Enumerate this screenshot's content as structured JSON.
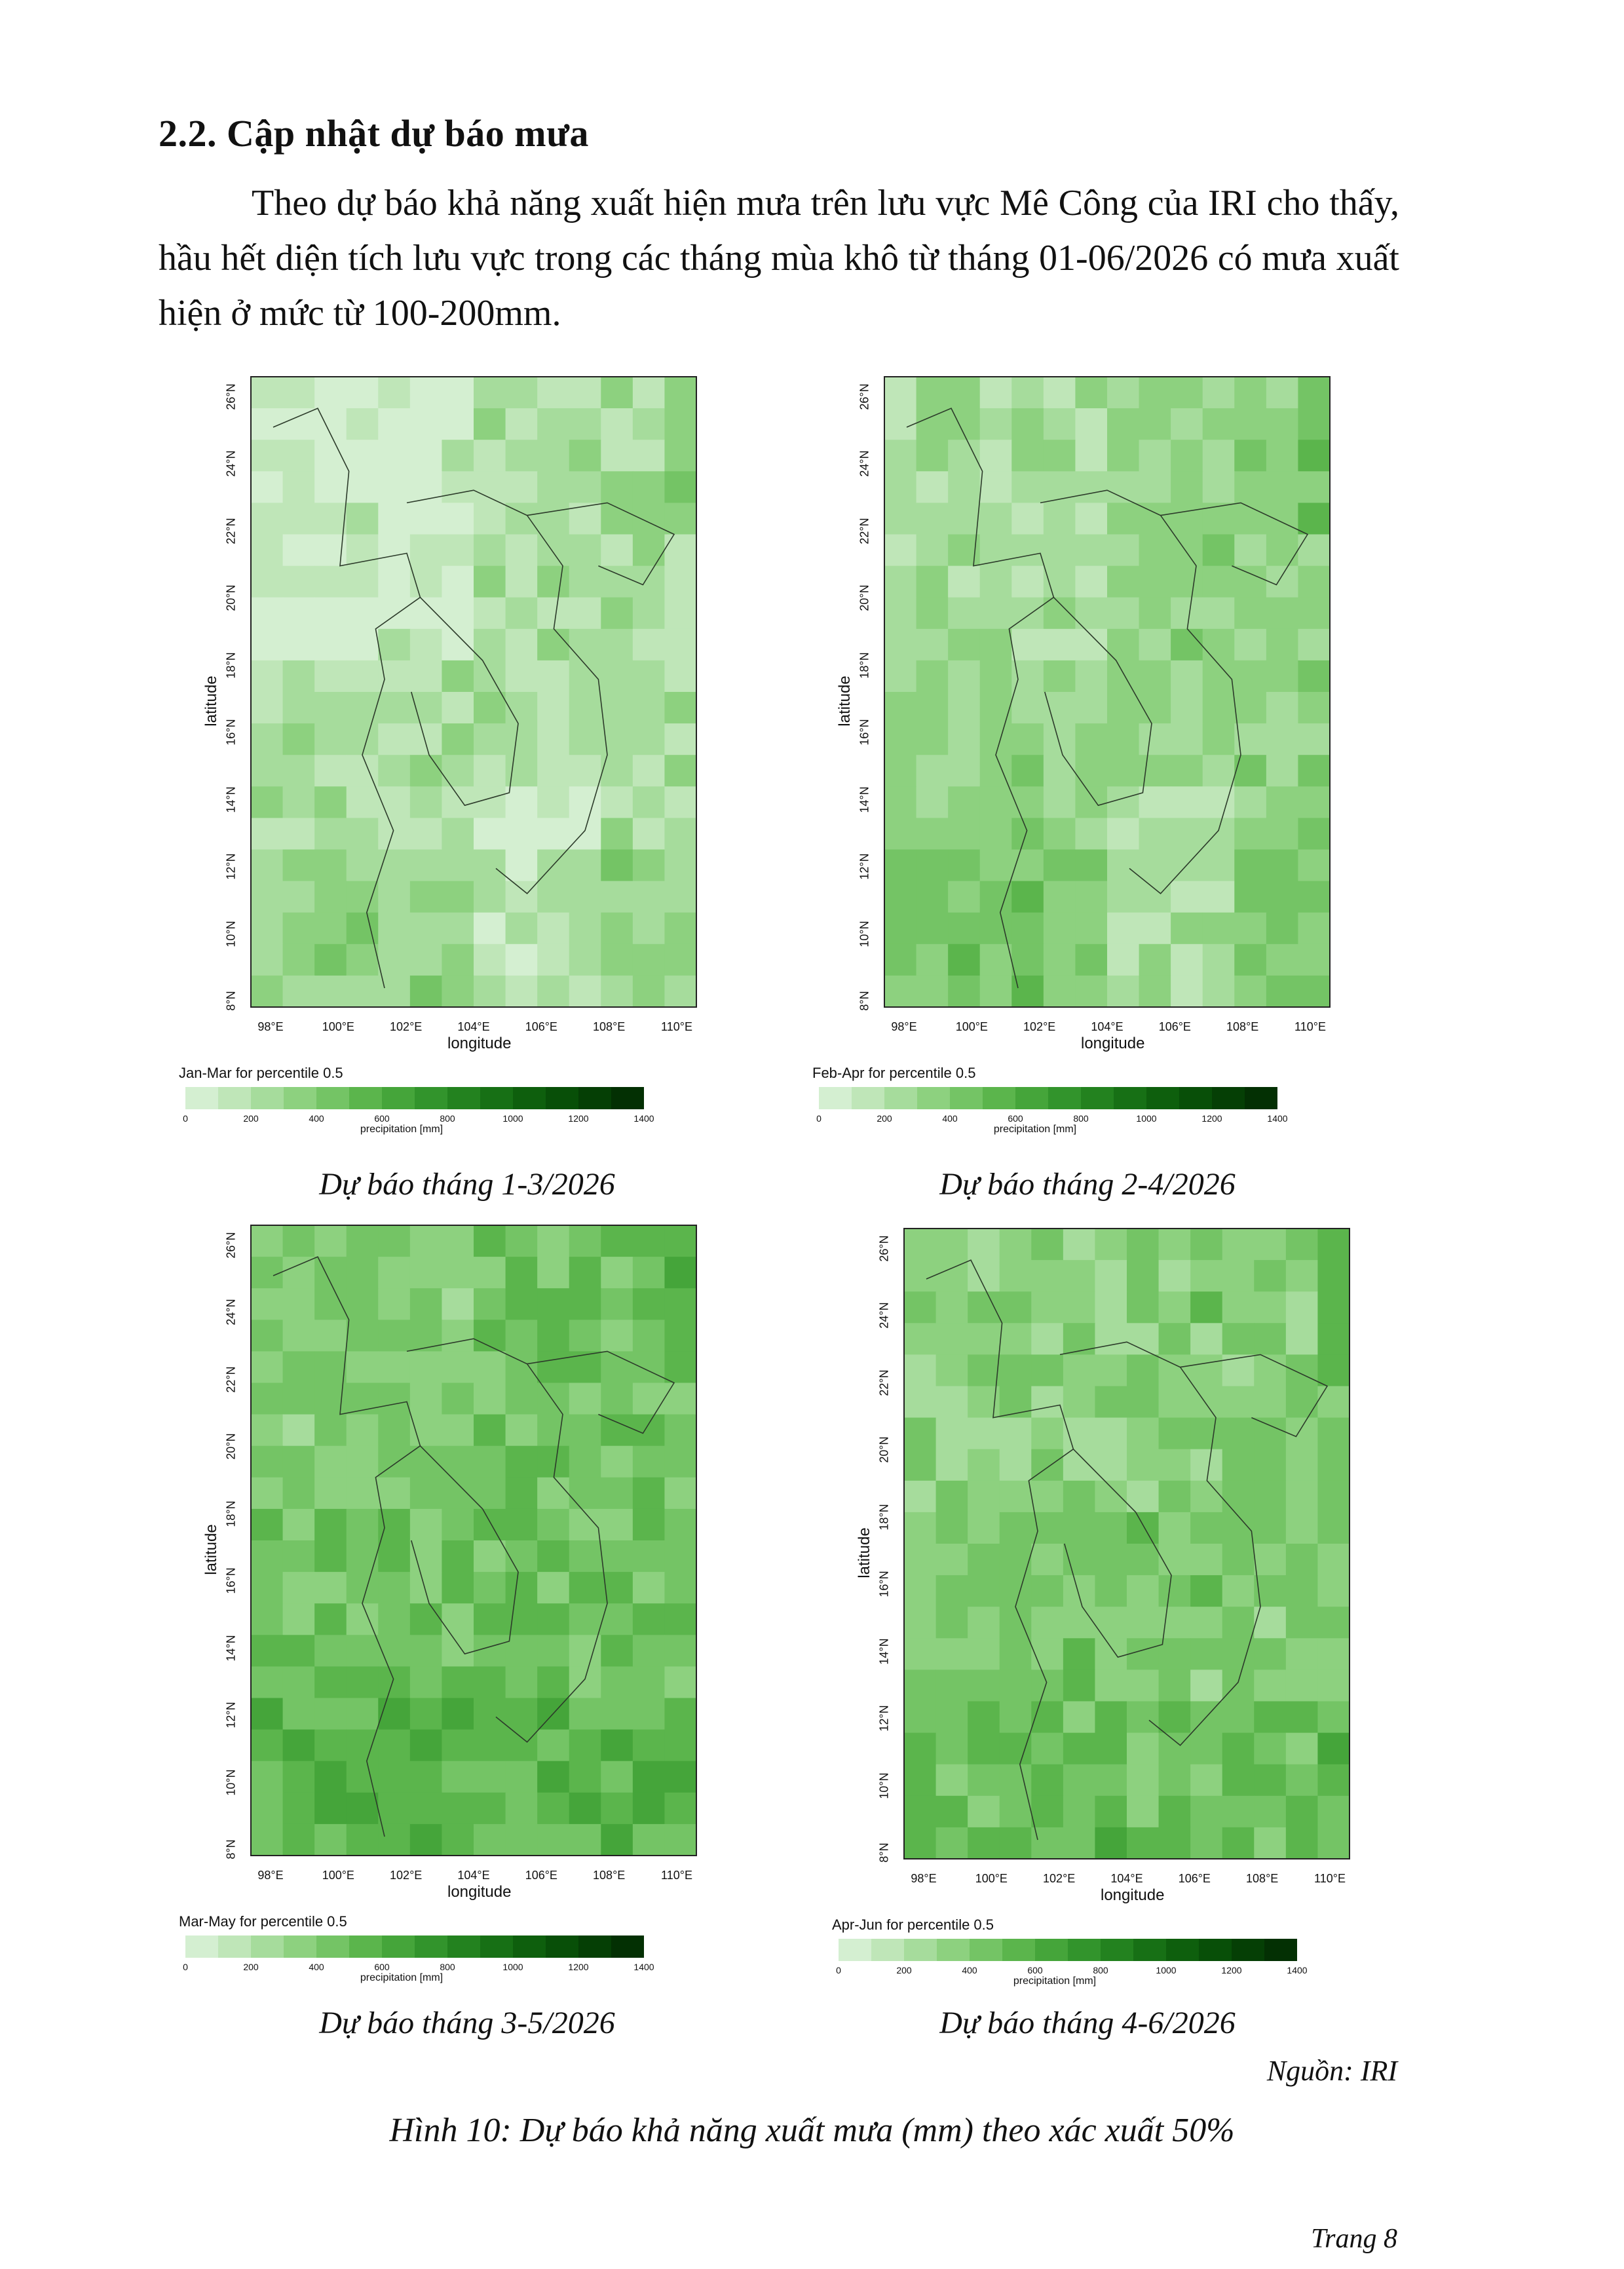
{
  "section": {
    "heading": "2.2. Cập nhật dự báo mưa",
    "paragraph": "Theo dự báo khả năng xuất hiện mưa trên lưu vực Mê Công của IRI cho thấy, hầu hết diện tích lưu vực trong các tháng mùa khô từ tháng 01-06/2026 có mưa xuất hiện ở mức từ 100-200mm."
  },
  "map_axes": {
    "lat_ticks": [
      "26°N",
      "24°N",
      "22°N",
      "20°N",
      "18°N",
      "16°N",
      "14°N",
      "12°N",
      "10°N",
      "8°N"
    ],
    "lon_ticks": [
      "98°E",
      "100°E",
      "102°E",
      "104°E",
      "106°E",
      "108°E",
      "110°E"
    ],
    "xlabel": "longitude",
    "ylabel": "latitude"
  },
  "colorbar": {
    "ticks": [
      "0",
      "200",
      "400",
      "600",
      "800",
      "1000",
      "1200",
      "1400"
    ],
    "unit": "precipitation [mm]",
    "colors": [
      "#d4efd1",
      "#bfe6b8",
      "#a6dc9c",
      "#8dd17f",
      "#74c465",
      "#5bb54c",
      "#45a53a",
      "#32942c",
      "#23821f",
      "#177015",
      "#0e5f0d",
      "#084f08",
      "#053f05",
      "#033003"
    ]
  },
  "panels": [
    {
      "period": "Jan-Mar for percentile 0.5",
      "caption": "Dự báo tháng 1-3/2026"
    },
    {
      "period": "Feb-Apr for percentile 0.5",
      "caption": "Dự báo tháng 2-4/2026"
    },
    {
      "period": "Mar-May for percentile 0.5",
      "caption": "Dự báo tháng 3-5/2026"
    },
    {
      "period": "Apr-Jun for percentile 0.5",
      "caption": "Dự báo tháng 4-6/2026"
    }
  ],
  "source": "Nguồn: IRI",
  "figure_caption": "Hình 10: Dự báo khả năng xuất mưa (mm) theo xác xuất 50%",
  "page_number": "Trang 8"
}
